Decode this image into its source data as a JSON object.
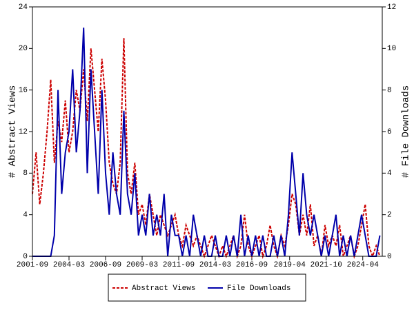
{
  "chart_data": {
    "type": "line",
    "x_label": null,
    "y_label": "# Abstract Views",
    "y2_label": "# File Downloads",
    "x": [
      "2001-09",
      "2001-12",
      "2002-03",
      "2002-06",
      "2002-09",
      "2002-12",
      "2003-03",
      "2003-06",
      "2003-09",
      "2003-12",
      "2004-03",
      "2004-06",
      "2004-09",
      "2004-12",
      "2005-03",
      "2005-06",
      "2005-09",
      "2005-12",
      "2006-03",
      "2006-06",
      "2006-09",
      "2006-12",
      "2007-03",
      "2007-06",
      "2007-09",
      "2007-12",
      "2008-03",
      "2008-06",
      "2008-09",
      "2008-12",
      "2009-03",
      "2009-06",
      "2009-09",
      "2009-12",
      "2010-03",
      "2010-06",
      "2010-09",
      "2010-12",
      "2011-03",
      "2011-06",
      "2011-09",
      "2011-12",
      "2012-03",
      "2012-06",
      "2012-09",
      "2012-12",
      "2013-03",
      "2013-06",
      "2013-09",
      "2013-12",
      "2014-03",
      "2014-06",
      "2014-09",
      "2014-12",
      "2015-03",
      "2015-06",
      "2015-09",
      "2015-12",
      "2016-03",
      "2016-06",
      "2016-09",
      "2016-12",
      "2017-03",
      "2017-06",
      "2017-09",
      "2017-12",
      "2018-03",
      "2018-06",
      "2018-09",
      "2018-12",
      "2019-03",
      "2019-06",
      "2019-09",
      "2019-12",
      "2020-03",
      "2020-06",
      "2020-09",
      "2020-12",
      "2021-03",
      "2021-06",
      "2021-09",
      "2021-12",
      "2022-03",
      "2022-06",
      "2022-09",
      "2022-12",
      "2023-03",
      "2023-06",
      "2023-09",
      "2023-12",
      "2024-03",
      "2024-06",
      "2024-09",
      "2024-12",
      "2025-03",
      "2025-06"
    ],
    "xlim": [
      "2001-09",
      "2025-08"
    ],
    "xticks": [
      "2001-09",
      "2004-03",
      "2006-09",
      "2009-03",
      "2011-09",
      "2014-03",
      "2016-09",
      "2019-04",
      "2021-10",
      "2024-04"
    ],
    "ylim": [
      0,
      24
    ],
    "yticks": [
      0,
      4,
      8,
      12,
      16,
      20,
      24
    ],
    "y2lim": [
      0,
      12
    ],
    "y2ticks": [
      0,
      2,
      4,
      6,
      8,
      10,
      12
    ],
    "legend": "bottom",
    "series": [
      {
        "name": "Abstract Views",
        "color": "#cc0000",
        "dash": true,
        "values": [
          6,
          10,
          5,
          8,
          12,
          17,
          9,
          13,
          11,
          15,
          10,
          12,
          16,
          14,
          18,
          13,
          20,
          16,
          12,
          19,
          15,
          9,
          7,
          6,
          9,
          21,
          8,
          6,
          9,
          4,
          5,
          3,
          6,
          4,
          2,
          4,
          3,
          2,
          3,
          4,
          2,
          1,
          3,
          2,
          1,
          2,
          1,
          0,
          1,
          2,
          1,
          0,
          1,
          0,
          1,
          2,
          0,
          1,
          4,
          1,
          0,
          1,
          2,
          0,
          1,
          3,
          1,
          0,
          2,
          1,
          3,
          6,
          5,
          2,
          4,
          2,
          5,
          1,
          2,
          0,
          3,
          1,
          2,
          1,
          3,
          0,
          1,
          2,
          0,
          1,
          3,
          5,
          1,
          0,
          1,
          0
        ]
      },
      {
        "name": "File Downloads",
        "color": "#0000aa",
        "dash": false,
        "axis": "y2",
        "values": [
          0,
          0,
          0,
          0,
          0,
          0,
          1,
          8,
          3,
          5,
          6,
          9,
          5,
          7,
          11,
          4,
          9,
          6,
          3,
          8,
          4,
          2,
          5,
          3,
          2,
          7,
          3,
          2,
          4,
          1,
          2,
          1,
          3,
          1,
          2,
          1,
          3,
          0,
          2,
          1,
          1,
          0,
          1,
          0,
          2,
          1,
          0,
          1,
          0,
          0,
          1,
          0,
          0,
          1,
          0,
          1,
          0,
          2,
          0,
          1,
          0,
          1,
          0,
          1,
          0,
          0,
          1,
          0,
          1,
          0,
          2,
          5,
          3,
          1,
          4,
          2,
          1,
          2,
          1,
          0,
          1,
          0,
          1,
          2,
          0,
          1,
          0,
          1,
          0,
          1,
          2,
          1,
          0,
          0,
          0,
          1
        ]
      }
    ]
  }
}
